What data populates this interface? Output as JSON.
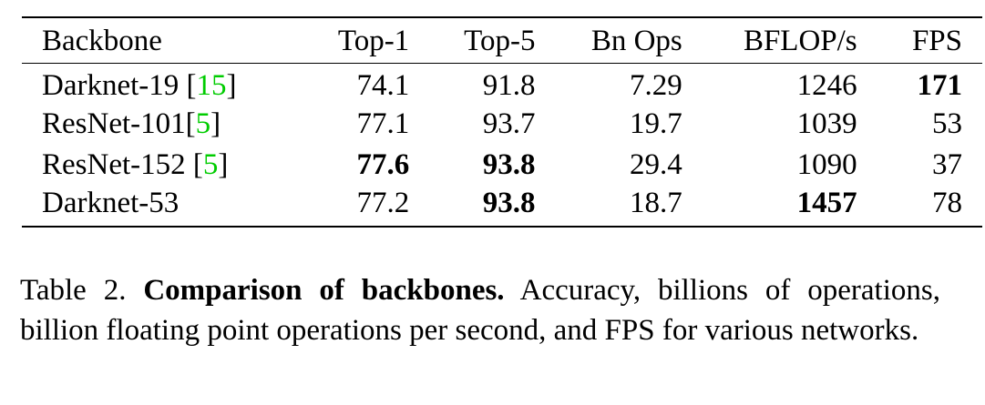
{
  "table": {
    "headers": [
      "Backbone",
      "Top-1",
      "Top-5",
      "Bn Ops",
      "BFLOP/s",
      "FPS"
    ],
    "rows": [
      {
        "name": "Darknet-19 ",
        "cite_open": "[",
        "cite_num": "15",
        "cite_close": "]",
        "top1": "74.1",
        "top5": "91.8",
        "bnops": "7.29",
        "bflops": "1246",
        "fps": "171"
      },
      {
        "name": "ResNet-101",
        "cite_open": "[",
        "cite_num": "5",
        "cite_close": "]",
        "top1": "77.1",
        "top5": "93.7",
        "bnops": "19.7",
        "bflops": "1039",
        "fps": "53"
      },
      {
        "name": "ResNet-152 ",
        "cite_open": "[",
        "cite_num": "5",
        "cite_close": "]",
        "top1": "77.6",
        "top5": "93.8",
        "bnops": "29.4",
        "bflops": "1090",
        "fps": "37"
      },
      {
        "name": "Darknet-53",
        "cite_open": "",
        "cite_num": "",
        "cite_close": "",
        "top1": "77.2",
        "top5": "93.8",
        "bnops": "18.7",
        "bflops": "1457",
        "fps": "78"
      }
    ]
  },
  "caption": {
    "label": "Table 2. ",
    "title": "Comparison of backbones.",
    "text": " Accuracy, billions of operations, billion floating point operations per second, and FPS for various networks."
  },
  "colors": {
    "citation": "#00cc00",
    "text": "#000000"
  }
}
